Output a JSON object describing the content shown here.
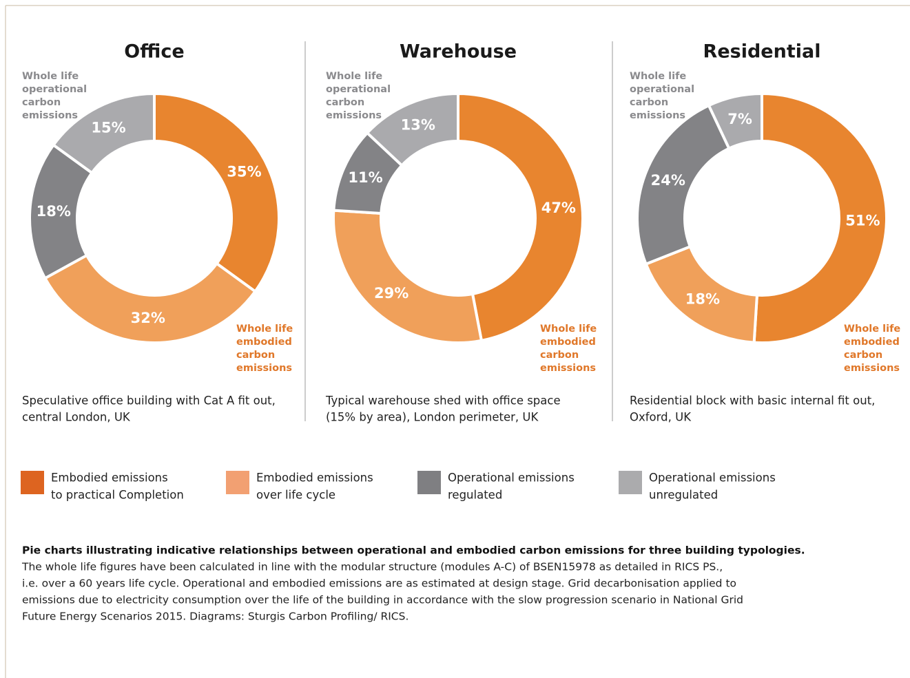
{
  "chart_data": [
    {
      "type": "pie",
      "donut": true,
      "title": "Office",
      "values": [
        35,
        32,
        18,
        15
      ],
      "value_labels": [
        "35%",
        "32%",
        "18%",
        "15%"
      ],
      "colors": [
        "#e8852f",
        "#f0a05a",
        "#838386",
        "#aaaaad"
      ],
      "annotations": [
        {
          "lines": [
            "Whole life",
            "operational",
            "carbon",
            "emissions"
          ],
          "color": "#8a8a8d"
        },
        {
          "lines": [
            "Whole life",
            "embodied",
            "carbon",
            "emissions"
          ],
          "color": "#e0782a"
        }
      ],
      "description": [
        "Speculative office building with Cat A fit out,",
        "central London, UK"
      ]
    },
    {
      "type": "pie",
      "donut": true,
      "title": "Warehouse",
      "values": [
        47,
        29,
        11,
        13
      ],
      "value_labels": [
        "47%",
        "29%",
        "11%",
        "13%"
      ],
      "colors": [
        "#e8852f",
        "#f0a05a",
        "#838386",
        "#aaaaad"
      ],
      "annotations": [
        {
          "lines": [
            "Whole life",
            "operational",
            "carbon",
            "emissions"
          ],
          "color": "#8a8a8d"
        },
        {
          "lines": [
            "Whole life",
            "embodied",
            "carbon",
            "emissions"
          ],
          "color": "#e0782a"
        }
      ],
      "description": [
        "Typical warehouse shed with office space",
        "(15% by area), London perimeter, UK"
      ]
    },
    {
      "type": "pie",
      "donut": true,
      "title": "Residential",
      "values": [
        51,
        18,
        24,
        7
      ],
      "value_labels": [
        "51%",
        "18%",
        "24%",
        "7%"
      ],
      "colors": [
        "#e8852f",
        "#f0a05a",
        "#838386",
        "#aaaaad"
      ],
      "annotations": [
        {
          "lines": [
            "Whole life",
            "operational",
            "carbon",
            "emissions"
          ],
          "color": "#8a8a8d"
        },
        {
          "lines": [
            "Whole life",
            "embodied",
            "carbon",
            "emissions"
          ],
          "color": "#e0782a"
        }
      ],
      "description": [
        "Residential block with basic internal fit out,",
        "Oxford, UK"
      ]
    }
  ],
  "legend": [
    {
      "lines": [
        "Embodied emissions",
        "to practical Completion"
      ],
      "color": "#dd6420"
    },
    {
      "lines": [
        "Embodied emissions",
        "over life cycle"
      ],
      "color": "#f2a072"
    },
    {
      "lines": [
        "Operational emissions",
        "regulated"
      ],
      "color": "#7f7f82"
    },
    {
      "lines": [
        "Operational emissions",
        "unregulated"
      ],
      "color": "#ababad"
    }
  ],
  "caption": {
    "heading": "Pie charts illustrating indicative relationships between operational and embodied carbon emissions for three building typologies.",
    "lines": [
      "The whole life figures have been calculated in line with the modular structure (modules A-C) of BSEN15978 as detailed in RICS PS.,",
      "i.e. over a 60 years life cycle. Operational and embodied emissions are as estimated at design stage. Grid decarbonisation applied to",
      "emissions due to electricity consumption over the life of the building in accordance with the slow progression scenario in National Grid",
      "Future Energy Scenarios 2015. Diagrams: Sturgis Carbon Profiling/ RICS."
    ]
  }
}
